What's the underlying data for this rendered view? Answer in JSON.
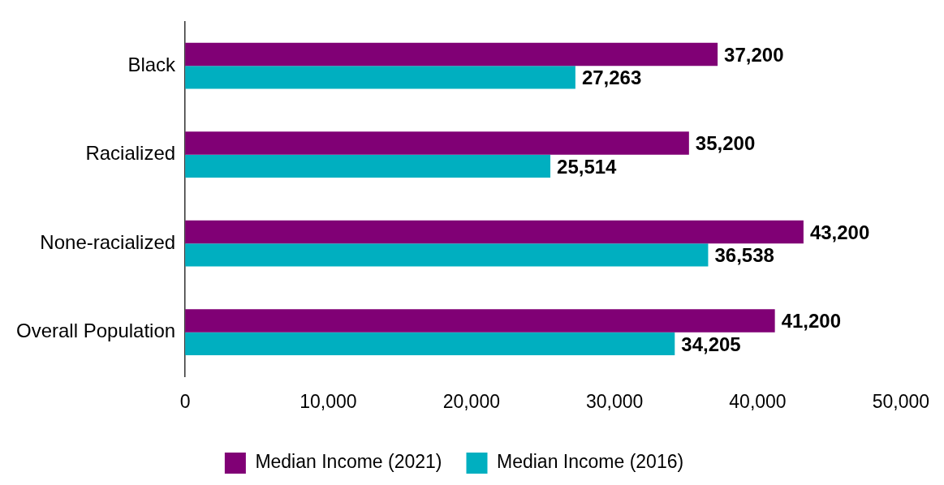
{
  "chart_data": {
    "type": "bar",
    "orientation": "horizontal",
    "categories": [
      "Black",
      "Racialized",
      "None-racialized",
      "Overall Population"
    ],
    "series": [
      {
        "name": "Median Income (2021)",
        "color": "#800075",
        "values": [
          37200,
          35200,
          43200,
          41200
        ],
        "value_labels": [
          "37,200",
          "35,200",
          "43,200",
          "41,200"
        ]
      },
      {
        "name": "Median Income (2016)",
        "color": "#00afc0",
        "values": [
          27263,
          25514,
          36538,
          34205
        ],
        "value_labels": [
          "27,263",
          "25,514",
          "36,538",
          "34,205"
        ]
      }
    ],
    "xlim": [
      0,
      50000
    ],
    "xticks": [
      0,
      {
        "value": 10000,
        "label": "10,000"
      },
      {
        "value": 20000,
        "label": "20,000"
      },
      {
        "value": 30000,
        "label": "30,000"
      },
      {
        "value": 40000,
        "label": "40,000"
      },
      {
        "value": 50000,
        "label": "50,000"
      }
    ],
    "grid": false,
    "legend": "bottom"
  }
}
